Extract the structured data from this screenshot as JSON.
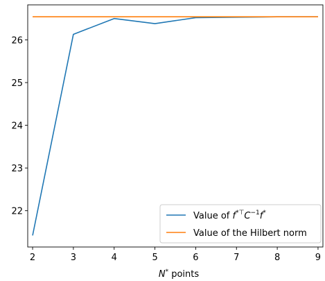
{
  "chart_data": {
    "type": "line",
    "x": [
      2,
      3,
      4,
      5,
      6,
      7,
      8,
      9
    ],
    "xlim": [
      1.88,
      9.12
    ],
    "ylim": [
      21.15,
      26.82
    ],
    "xticks": [
      2,
      3,
      4,
      5,
      6,
      7,
      8,
      9
    ],
    "yticks": [
      22,
      23,
      24,
      25,
      26
    ],
    "xlabel_main": "N",
    "xlabel_sup": "*",
    "xlabel_rest": " points",
    "grid": false,
    "legend_placement": "lower-right",
    "series": [
      {
        "name_parts": [
          "Value of ",
          "f",
          "*⊤",
          "C",
          "−1",
          "f",
          "*"
        ],
        "color": "#1f77b4",
        "values": [
          21.42,
          26.13,
          26.5,
          26.38,
          26.52,
          26.53,
          26.54,
          26.54
        ]
      },
      {
        "name": "Value of the Hilbert norm",
        "color": "#ff7f0e",
        "values": [
          26.54,
          26.54,
          26.54,
          26.54,
          26.54,
          26.54,
          26.54,
          26.54
        ]
      }
    ]
  }
}
